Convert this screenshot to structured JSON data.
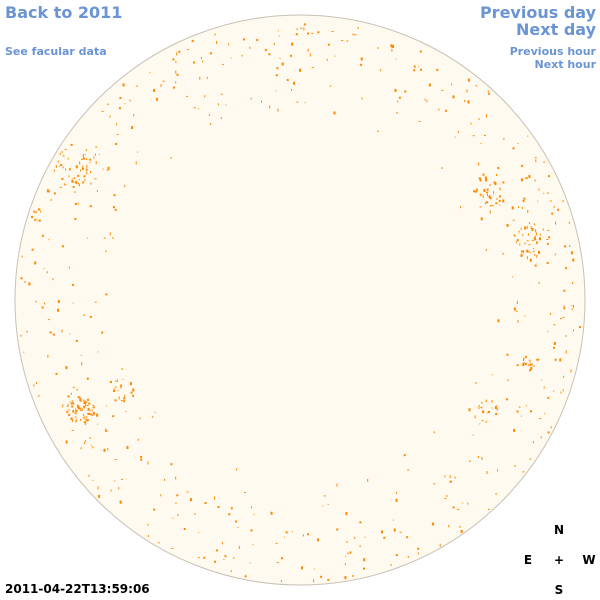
{
  "nav": {
    "back": "Back to 2011",
    "previous_day": "Previous day",
    "next_day": "Next day",
    "see_facular": "See facular data",
    "previous_hour": "Previous hour",
    "next_hour": "Next hour"
  },
  "timestamp": "2011-04-22T13:59:06",
  "compass": {
    "north": "N",
    "south": "S",
    "east": "E",
    "west": "W",
    "center": "+"
  },
  "colors": {
    "disk_fill": "#fffaf0",
    "disk_border": "#c8c0b4",
    "facula": "#ff8800",
    "link": "#6a94d4"
  }
}
